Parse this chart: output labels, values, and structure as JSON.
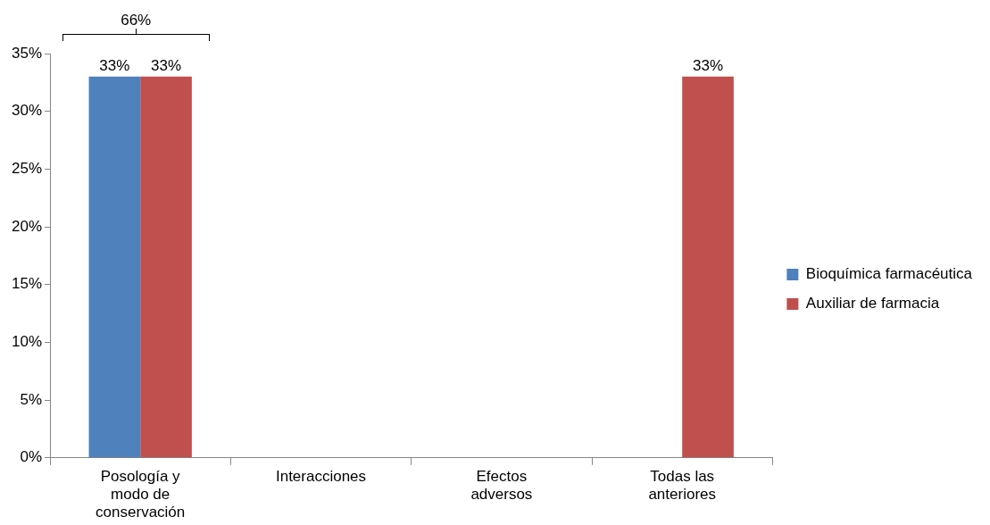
{
  "chart_data": {
    "type": "bar",
    "categories": [
      "Posología y modo de conservación",
      "Interacciones",
      "Efectos adversos",
      "Todas las anteriores"
    ],
    "series": [
      {
        "name": "Bioquímica farmacéutica",
        "color": "#4f81bd",
        "values": [
          33,
          0,
          0,
          0
        ],
        "value_labels": [
          "33%",
          null,
          null,
          null
        ]
      },
      {
        "name": "Auxiliar de farmacia",
        "color": "#c0504d",
        "values": [
          33,
          0,
          0,
          33
        ],
        "value_labels": [
          "33%",
          null,
          null,
          "33%"
        ]
      }
    ],
    "ylim": [
      0,
      35
    ],
    "yticks": [
      {
        "value": 0,
        "label": "0%"
      },
      {
        "value": 5,
        "label": "5%"
      },
      {
        "value": 10,
        "label": "10%"
      },
      {
        "value": 15,
        "label": "15%"
      },
      {
        "value": 20,
        "label": "20%"
      },
      {
        "value": 25,
        "label": "25%"
      },
      {
        "value": 30,
        "label": "30%"
      },
      {
        "value": 35,
        "label": "35%"
      }
    ],
    "annotations": [
      "66%"
    ],
    "grid": false,
    "legend": "right"
  }
}
